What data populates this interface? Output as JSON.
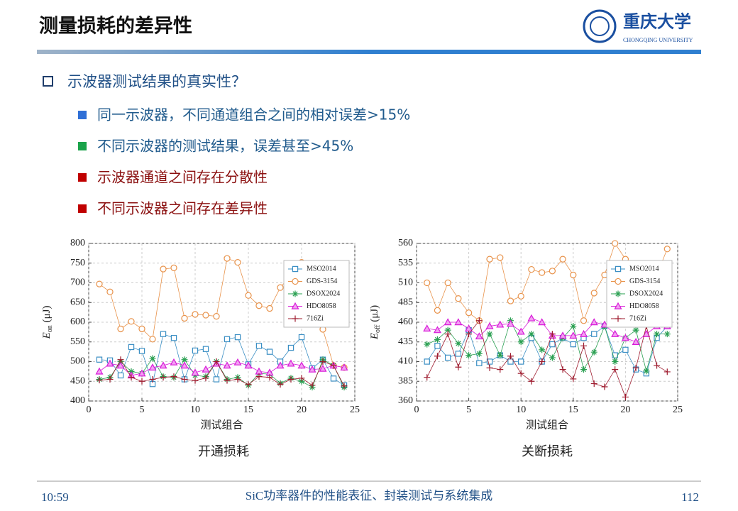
{
  "header": {
    "title": "测量损耗的差异性",
    "logo_cn": "重庆大学",
    "logo_en": "CHONGQING UNIVERSITY"
  },
  "bullets": {
    "main": "示波器测试结果的真实性？",
    "items": [
      {
        "text": "同一示波器，不同通道组合之间的相对误差>15%",
        "color": "#1f5a8c",
        "marker": "#2f6fd6"
      },
      {
        "text": "不同示波器的测试结果，误差甚至>45%",
        "color": "#1f5a8c",
        "marker": "#1aa34a"
      },
      {
        "text": "示波器通道之间存在分散性",
        "color": "#8b1010",
        "marker": "#c00000"
      },
      {
        "text": "不同示波器之间存在差异性",
        "color": "#8b1010",
        "marker": "#c00000"
      }
    ]
  },
  "chart_data": [
    {
      "type": "line",
      "caption": "开通损耗",
      "xlabel": "测试组合",
      "ylabel": {
        "main": "E",
        "sub": "on",
        "unit": " (μJ)"
      },
      "x": [
        1,
        2,
        3,
        4,
        5,
        6,
        7,
        8,
        9,
        10,
        11,
        12,
        13,
        14,
        15,
        16,
        17,
        18,
        19,
        20,
        21,
        22,
        23,
        24
      ],
      "xlim": [
        0,
        25
      ],
      "xticks": [
        0,
        5,
        10,
        15,
        20,
        25
      ],
      "ylim": [
        400,
        800
      ],
      "yticks": [
        400,
        450,
        500,
        550,
        600,
        650,
        700,
        750,
        800
      ],
      "grid": true,
      "legend": "upper right",
      "series": [
        {
          "name": "MSO2014",
          "color": "#3b8fc4",
          "marker": "square",
          "values": [
            505,
            503,
            465,
            537,
            527,
            443,
            570,
            560,
            455,
            528,
            532,
            455,
            557,
            562,
            493,
            540,
            525,
            500,
            535,
            562,
            483,
            505,
            457,
            440
          ]
        },
        {
          "name": "GDS-3154",
          "color": "#e8924a",
          "marker": "circle",
          "values": [
            697,
            677,
            583,
            602,
            583,
            557,
            735,
            738,
            610,
            620,
            618,
            615,
            762,
            752,
            668,
            642,
            635,
            688,
            720,
            752,
            600,
            582,
            490,
            485
          ]
        },
        {
          "name": "DSOX2024",
          "color": "#2aa052",
          "marker": "star",
          "values": [
            455,
            460,
            500,
            475,
            470,
            508,
            462,
            460,
            505,
            465,
            462,
            500,
            455,
            460,
            440,
            470,
            468,
            445,
            458,
            450,
            435,
            505,
            490,
            435
          ]
        },
        {
          "name": "HDO8058",
          "color": "#d81bd8",
          "marker": "triangle",
          "values": [
            475,
            495,
            490,
            465,
            470,
            485,
            490,
            498,
            490,
            472,
            480,
            495,
            490,
            498,
            490,
            475,
            472,
            490,
            495,
            490,
            480,
            482,
            490,
            485
          ]
        },
        {
          "name": "716Zi",
          "color": "#9e1b2e",
          "marker": "plus",
          "values": [
            453,
            455,
            505,
            460,
            450,
            455,
            460,
            462,
            455,
            452,
            458,
            500,
            452,
            455,
            442,
            462,
            460,
            442,
            455,
            458,
            440,
            500,
            490,
            438
          ]
        }
      ]
    },
    {
      "type": "line",
      "caption": "关断损耗",
      "xlabel": "测试组合",
      "ylabel": {
        "main": "E",
        "sub": "off",
        "unit": " (μJ)"
      },
      "x": [
        1,
        2,
        3,
        4,
        5,
        6,
        7,
        8,
        9,
        10,
        11,
        12,
        13,
        14,
        15,
        16,
        17,
        18,
        19,
        20,
        21,
        22,
        23,
        24
      ],
      "xlim": [
        0,
        25
      ],
      "xticks": [
        0,
        5,
        10,
        15,
        20,
        25
      ],
      "ylim": [
        360,
        560
      ],
      "yticks": [
        360,
        385,
        410,
        435,
        460,
        485,
        510,
        535,
        560
      ],
      "grid": true,
      "legend": "upper right",
      "series": [
        {
          "name": "MSO2014",
          "color": "#3b8fc4",
          "marker": "square",
          "values": [
            410,
            430,
            415,
            420,
            450,
            408,
            410,
            418,
            410,
            410,
            440,
            410,
            432,
            440,
            432,
            440,
            445,
            455,
            418,
            425,
            400,
            395,
            440,
            455
          ]
        },
        {
          "name": "GDS-3154",
          "color": "#e8924a",
          "marker": "circle",
          "values": [
            510,
            475,
            510,
            490,
            472,
            462,
            540,
            542,
            487,
            493,
            527,
            523,
            525,
            540,
            520,
            462,
            497,
            520,
            560,
            540,
            470,
            460,
            520,
            553
          ]
        },
        {
          "name": "DSOX2024",
          "color": "#2aa052",
          "marker": "star",
          "values": [
            432,
            438,
            450,
            433,
            418,
            420,
            445,
            418,
            462,
            435,
            445,
            425,
            415,
            440,
            455,
            400,
            422,
            455,
            410,
            440,
            450,
            398,
            445,
            445
          ]
        },
        {
          "name": "HDO8058",
          "color": "#d81bd8",
          "marker": "triangle",
          "values": [
            452,
            450,
            460,
            460,
            452,
            442,
            455,
            457,
            458,
            448,
            465,
            460,
            443,
            443,
            443,
            445,
            460,
            457,
            445,
            440,
            435,
            445,
            455,
            455
          ]
        },
        {
          "name": "716Zi",
          "color": "#9e1b2e",
          "marker": "plus",
          "values": [
            390,
            417,
            445,
            403,
            445,
            462,
            402,
            400,
            417,
            395,
            385,
            410,
            445,
            400,
            388,
            430,
            382,
            378,
            400,
            365,
            402,
            455,
            405,
            397
          ]
        }
      ]
    }
  ],
  "footer": {
    "time": "10:59",
    "subject": "SiC功率器件的性能表征、封装测试与系统集成",
    "page": "112"
  }
}
